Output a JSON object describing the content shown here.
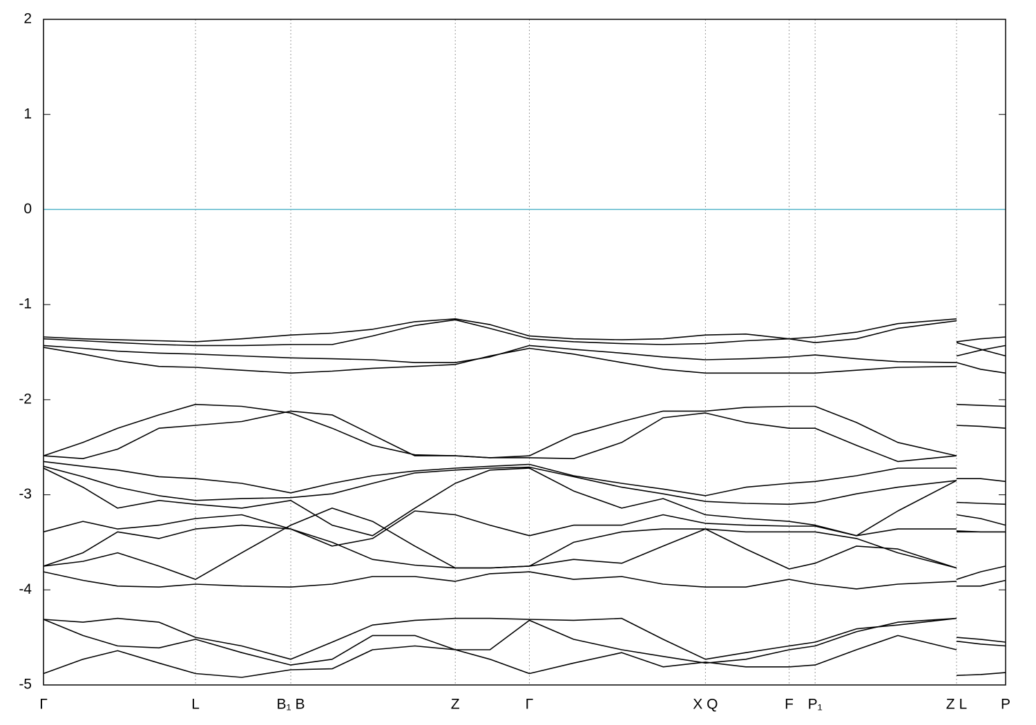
{
  "chart_data": {
    "type": "line",
    "x": [
      0,
      0.041,
      0.077,
      0.12,
      0.158,
      0.206,
      0.257,
      0.3,
      0.342,
      0.386,
      0.428,
      0.464,
      0.505,
      0.551,
      0.601,
      0.644,
      0.688,
      0.73,
      0.775,
      0.802,
      0.845,
      0.888,
      0.949,
      0.949,
      0.949,
      0.974,
      1
    ],
    "xlim": [
      0,
      1
    ],
    "xticks": [
      {
        "value": 0,
        "label": "Γ"
      },
      {
        "value": 0.158,
        "label": "L"
      },
      {
        "value": 0.257,
        "label": "B₁ B"
      },
      {
        "value": 0.428,
        "label": "Z"
      },
      {
        "value": 0.505,
        "label": "Γ"
      },
      {
        "value": 0.688,
        "label": "X Q"
      },
      {
        "value": 0.775,
        "label": "F"
      },
      {
        "value": 0.802,
        "label": "P₁"
      },
      {
        "value": 0.949,
        "label": "Z L"
      },
      {
        "value": 1,
        "label": "P"
      }
    ],
    "ylim": [
      -5,
      2
    ],
    "yticks": [
      -5,
      -4,
      -3,
      -2,
      -1,
      0,
      1,
      2
    ],
    "xgrid": true,
    "hline": 0,
    "hline_color": "#4fb3c8",
    "series": [
      {
        "color": "#000000",
        "values": [
          -1.34,
          -1.36,
          -1.37,
          -1.38,
          -1.39,
          -1.36,
          -1.32,
          -1.3,
          -1.26,
          -1.18,
          -1.15,
          -1.21,
          -1.33,
          -1.36,
          -1.37,
          -1.36,
          -1.32,
          -1.31,
          -1.36,
          -1.34,
          -1.29,
          -1.2,
          -1.15,
          null,
          -1.39,
          -1.36,
          -1.34
        ]
      },
      {
        "color": "#000000",
        "values": [
          -1.36,
          -1.38,
          -1.4,
          -1.42,
          -1.43,
          -1.43,
          -1.42,
          -1.42,
          -1.33,
          -1.22,
          -1.16,
          -1.25,
          -1.36,
          -1.39,
          -1.41,
          -1.42,
          -1.41,
          -1.38,
          -1.36,
          -1.4,
          -1.36,
          -1.25,
          -1.17,
          null,
          -1.54,
          -1.48,
          -1.43
        ]
      },
      {
        "color": "#000000",
        "values": [
          -1.43,
          -1.46,
          -1.49,
          -1.51,
          -1.52,
          -1.54,
          -1.56,
          -1.57,
          -1.58,
          -1.61,
          -1.61,
          -1.55,
          -1.43,
          -1.47,
          -1.51,
          -1.55,
          -1.58,
          -1.57,
          -1.55,
          -1.53,
          -1.57,
          -1.6,
          -1.61,
          null,
          -1.4,
          -1.47,
          -1.54
        ]
      },
      {
        "color": "#000000",
        "values": [
          -1.45,
          -1.52,
          -1.59,
          -1.65,
          -1.66,
          -1.69,
          -1.72,
          -1.7,
          -1.67,
          -1.65,
          -1.63,
          -1.54,
          -1.46,
          -1.52,
          -1.61,
          -1.68,
          -1.72,
          -1.72,
          -1.72,
          -1.72,
          -1.69,
          -1.66,
          -1.65,
          null,
          -1.61,
          -1.68,
          -1.72
        ]
      },
      {
        "color": "#000000",
        "values": [
          -2.59,
          -2.45,
          -2.3,
          -2.16,
          -2.05,
          -2.07,
          -2.14,
          -2.3,
          -2.48,
          -2.58,
          -2.59,
          -2.61,
          -2.59,
          -2.37,
          -2.23,
          -2.12,
          -2.12,
          -2.08,
          -2.07,
          -2.07,
          -2.24,
          -2.45,
          -2.59,
          null,
          -2.05,
          -2.06,
          -2.07
        ]
      },
      {
        "color": "#000000",
        "values": [
          -2.59,
          -2.62,
          -2.52,
          -2.3,
          -2.27,
          -2.23,
          -2.12,
          -2.16,
          -2.37,
          -2.59,
          -2.59,
          -2.61,
          -2.61,
          -2.62,
          -2.45,
          -2.19,
          -2.14,
          -2.24,
          -2.3,
          -2.3,
          -2.48,
          -2.65,
          -2.59,
          null,
          -2.27,
          -2.28,
          -2.3
        ]
      },
      {
        "color": "#000000",
        "values": [
          -2.65,
          -2.7,
          -2.74,
          -2.81,
          -2.83,
          -2.88,
          -2.98,
          -2.88,
          -2.8,
          -2.75,
          -2.72,
          -2.7,
          -2.68,
          -2.8,
          -2.88,
          -2.94,
          -3.01,
          -2.92,
          -2.88,
          -2.86,
          -2.8,
          -2.72,
          -2.72,
          null,
          -2.83,
          -2.83,
          -2.86
        ]
      },
      {
        "color": "#000000",
        "values": [
          -2.7,
          -2.81,
          -2.92,
          -3.01,
          -3.06,
          -3.04,
          -3.03,
          -2.99,
          -2.88,
          -2.77,
          -2.74,
          -2.72,
          -2.71,
          -2.81,
          -2.92,
          -2.99,
          -3.07,
          -3.09,
          -3.1,
          -3.08,
          -2.99,
          -2.92,
          -2.85,
          null,
          -3.08,
          -3.09,
          -3.1
        ]
      },
      {
        "color": "#000000",
        "values": [
          -2.72,
          -2.92,
          -3.14,
          -3.06,
          -3.1,
          -3.14,
          -3.06,
          -3.32,
          -3.43,
          -3.14,
          -2.88,
          -2.74,
          -2.72,
          -2.96,
          -3.14,
          -3.04,
          -3.21,
          -3.25,
          -3.28,
          -3.32,
          -3.43,
          -3.17,
          -2.85,
          null,
          -3.21,
          -3.25,
          -3.32
        ]
      },
      {
        "color": "#000000",
        "values": [
          -3.39,
          -3.28,
          -3.36,
          -3.32,
          -3.25,
          -3.21,
          -3.36,
          -3.54,
          -3.46,
          -3.17,
          -3.21,
          -3.32,
          -3.43,
          -3.32,
          -3.32,
          -3.21,
          -3.3,
          -3.32,
          -3.33,
          -3.33,
          -3.43,
          -3.36,
          -3.36,
          null,
          -3.38,
          -3.39,
          -3.39
        ]
      },
      {
        "color": "#000000",
        "values": [
          -3.75,
          -3.61,
          -3.39,
          -3.46,
          -3.36,
          -3.32,
          -3.36,
          -3.5,
          -3.68,
          -3.74,
          -3.77,
          -3.77,
          -3.75,
          -3.5,
          -3.39,
          -3.36,
          -3.36,
          -3.39,
          -3.39,
          -3.39,
          -3.46,
          -3.61,
          -3.77,
          null,
          -3.39,
          -3.39,
          -3.39
        ]
      },
      {
        "color": "#000000",
        "values": [
          -3.75,
          -3.7,
          -3.61,
          -3.75,
          -3.89,
          -3.61,
          -3.32,
          -3.14,
          -3.28,
          -3.54,
          -3.77,
          -3.77,
          -3.75,
          -3.68,
          -3.72,
          -3.54,
          -3.36,
          -3.57,
          -3.78,
          -3.72,
          -3.54,
          -3.57,
          -3.77,
          null,
          -3.89,
          -3.81,
          -3.75
        ]
      },
      {
        "color": "#000000",
        "values": [
          -3.81,
          -3.9,
          -3.96,
          -3.97,
          -3.94,
          -3.96,
          -3.97,
          -3.94,
          -3.86,
          -3.86,
          -3.91,
          -3.83,
          -3.81,
          -3.89,
          -3.86,
          -3.94,
          -3.97,
          -3.97,
          -3.89,
          -3.94,
          -3.99,
          -3.94,
          -3.91,
          null,
          -3.96,
          -3.96,
          -3.9
        ]
      },
      {
        "color": "#000000",
        "values": [
          -4.31,
          -4.34,
          -4.3,
          -4.34,
          -4.5,
          -4.59,
          -4.73,
          -4.55,
          -4.37,
          -4.32,
          -4.3,
          -4.3,
          -4.31,
          -4.32,
          -4.3,
          -4.52,
          -4.73,
          -4.66,
          -4.59,
          -4.55,
          -4.41,
          -4.37,
          -4.3,
          null,
          -4.5,
          -4.52,
          -4.55
        ]
      },
      {
        "color": "#000000",
        "values": [
          -4.31,
          -4.48,
          -4.59,
          -4.61,
          -4.52,
          -4.66,
          -4.79,
          -4.73,
          -4.48,
          -4.48,
          -4.63,
          -4.63,
          -4.32,
          -4.52,
          -4.63,
          -4.7,
          -4.77,
          -4.73,
          -4.63,
          -4.59,
          -4.44,
          -4.34,
          -4.3,
          null,
          -4.54,
          -4.57,
          -4.59
        ]
      },
      {
        "color": "#000000",
        "values": [
          -4.88,
          -4.73,
          -4.64,
          -4.77,
          -4.88,
          -4.92,
          -4.84,
          -4.83,
          -4.63,
          -4.59,
          -4.63,
          -4.73,
          -4.88,
          -4.77,
          -4.66,
          -4.81,
          -4.76,
          -4.81,
          -4.81,
          -4.79,
          -4.63,
          -4.48,
          -4.63,
          null,
          -4.9,
          -4.89,
          -4.87
        ]
      }
    ]
  }
}
